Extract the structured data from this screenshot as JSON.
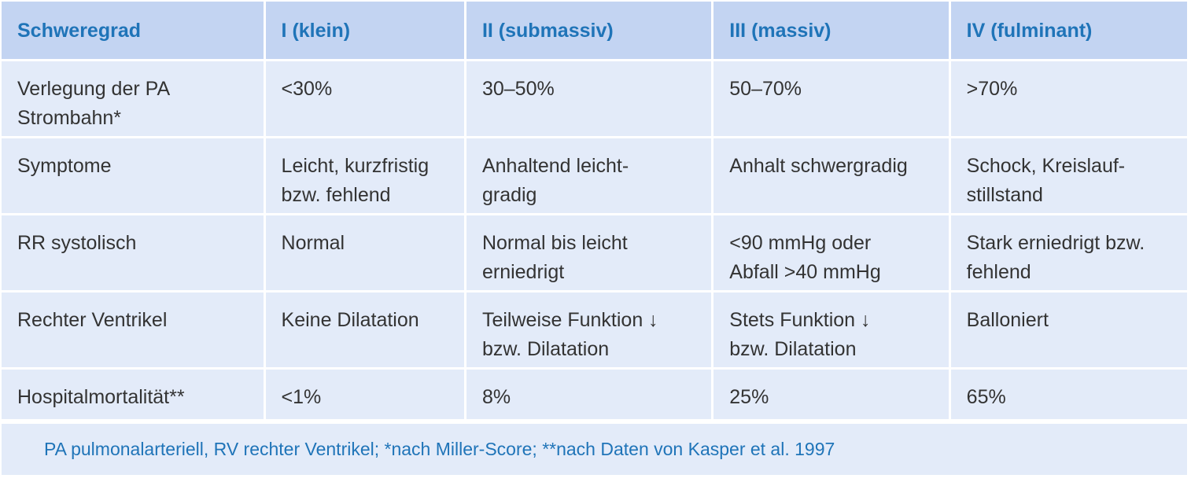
{
  "header": {
    "columns": [
      "Schweregrad",
      "I (klein)",
      "II (submassiv)",
      "III (massiv)",
      "IV (fulminant)"
    ]
  },
  "rows": [
    {
      "label": [
        "Verlegung der PA",
        "Strombahn*"
      ],
      "cells": [
        [
          "<30%"
        ],
        [
          "30–50%"
        ],
        [
          "50–70%"
        ],
        [
          ">70%"
        ]
      ]
    },
    {
      "label": [
        "Symptome"
      ],
      "cells": [
        [
          "Leicht, kurzfristig",
          "bzw. fehlend"
        ],
        [
          "Anhaltend leicht-",
          "gradig"
        ],
        [
          "Anhalt schwergradig"
        ],
        [
          "Schock, Kreislauf-",
          "stillstand"
        ]
      ]
    },
    {
      "label": [
        "RR systolisch"
      ],
      "cells": [
        [
          "Normal"
        ],
        [
          "Normal bis leicht",
          "erniedrigt"
        ],
        [
          "<90 mmHg oder",
          "Abfall >40 mmHg"
        ],
        [
          "Stark erniedrigt bzw.",
          "fehlend"
        ]
      ]
    },
    {
      "label": [
        "Rechter Ventrikel"
      ],
      "cells": [
        [
          "Keine Dilatation"
        ],
        [
          "Teilweise Funktion ↓",
          "bzw. Dilatation"
        ],
        [
          "Stets Funktion ↓",
          "bzw. Dilatation"
        ],
        [
          "Balloniert"
        ]
      ]
    },
    {
      "label": [
        "Hospitalmortalität**"
      ],
      "cells": [
        [
          "<1%"
        ],
        [
          "8%"
        ],
        [
          "25%"
        ],
        [
          "65%"
        ]
      ]
    }
  ],
  "footnote": "PA pulmonalarteriell, RV rechter Ventrikel; *nach Miller-Score; **nach Daten von Kasper et al. 1997",
  "colors": {
    "header_bg": "#c3d4f2",
    "body_bg": "#e3ebf9",
    "accent_text": "#1f74b8",
    "body_text": "#333333"
  }
}
